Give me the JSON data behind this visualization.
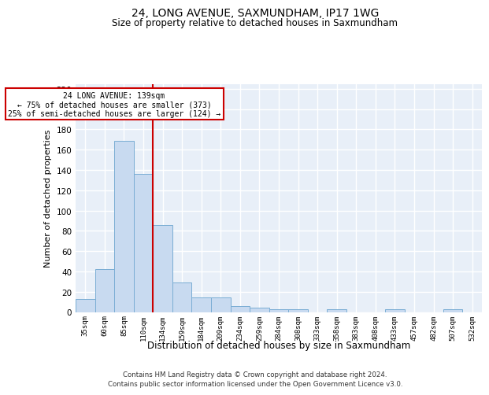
{
  "title": "24, LONG AVENUE, SAXMUNDHAM, IP17 1WG",
  "subtitle": "Size of property relative to detached houses in Saxmundham",
  "xlabel": "Distribution of detached houses by size in Saxmundham",
  "ylabel": "Number of detached properties",
  "categories": [
    "35sqm",
    "60sqm",
    "85sqm",
    "110sqm",
    "134sqm",
    "159sqm",
    "184sqm",
    "209sqm",
    "234sqm",
    "259sqm",
    "284sqm",
    "308sqm",
    "333sqm",
    "358sqm",
    "383sqm",
    "408sqm",
    "433sqm",
    "457sqm",
    "482sqm",
    "507sqm",
    "532sqm"
  ],
  "values": [
    13,
    42,
    169,
    136,
    86,
    29,
    14,
    14,
    6,
    4,
    3,
    3,
    0,
    3,
    0,
    0,
    3,
    0,
    0,
    3,
    0
  ],
  "bar_color": "#c8daf0",
  "bar_edge_color": "#7aadd4",
  "background_color": "#e8eff8",
  "grid_color": "#ffffff",
  "red_line_x": 3.5,
  "red_line_color": "#cc0000",
  "annotation_text": "24 LONG AVENUE: 139sqm\n← 75% of detached houses are smaller (373)\n25% of semi-detached houses are larger (124) →",
  "annotation_box_color": "#cc0000",
  "ylim": [
    0,
    225
  ],
  "yticks": [
    0,
    20,
    40,
    60,
    80,
    100,
    120,
    140,
    160,
    180,
    200,
    220
  ],
  "footnote1": "Contains HM Land Registry data © Crown copyright and database right 2024.",
  "footnote2": "Contains public sector information licensed under the Open Government Licence v3.0."
}
